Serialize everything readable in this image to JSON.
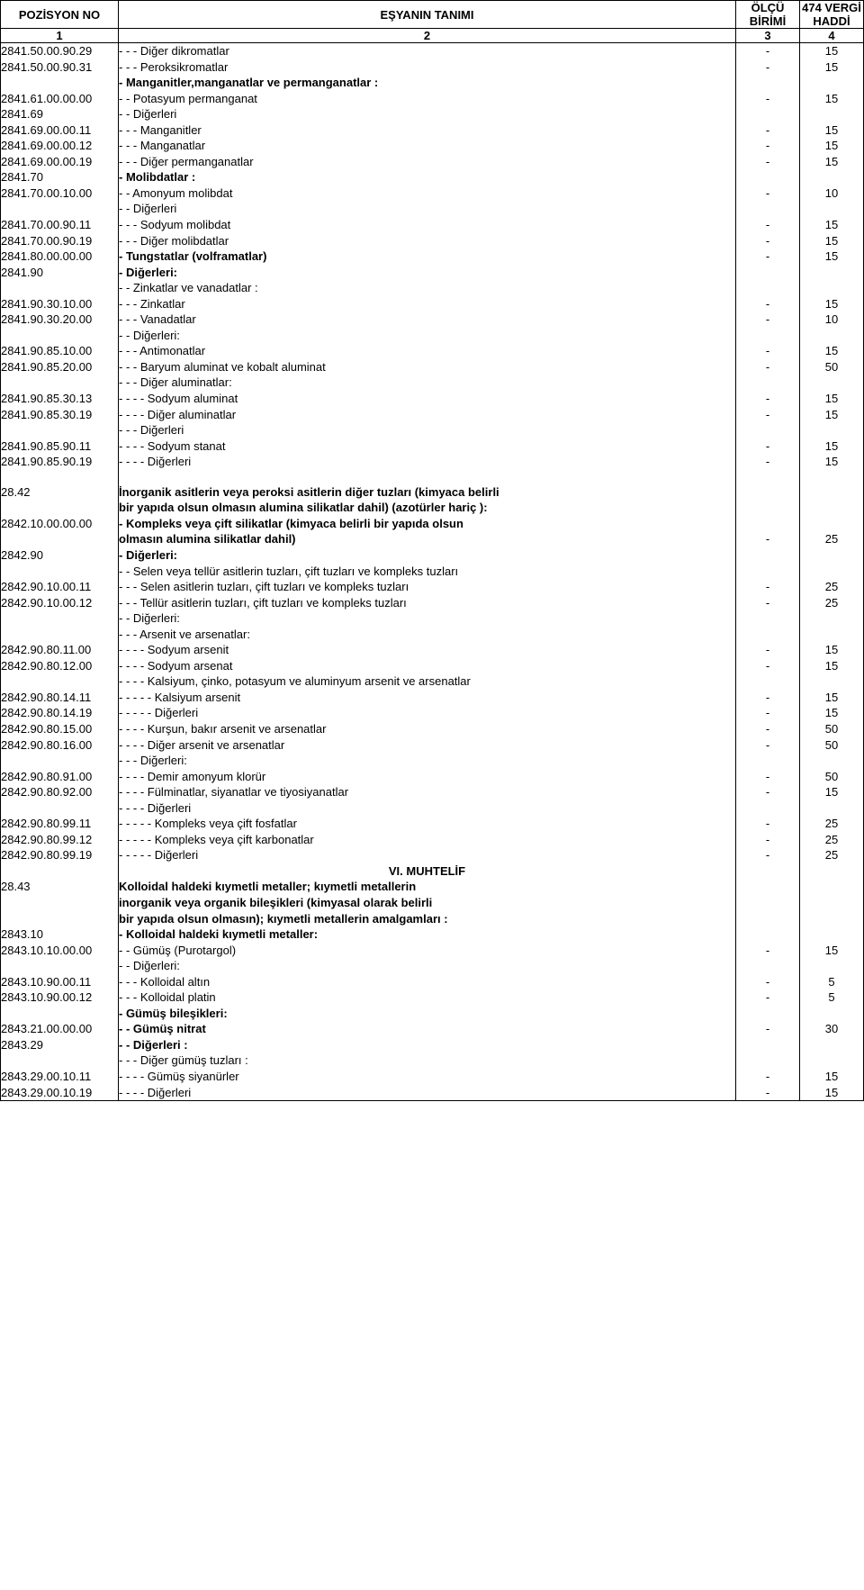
{
  "header": {
    "pozisyon": "POZİSYON NO",
    "esyanin": "EŞYANIN TANIMI",
    "olcu": "ÖLÇÜ BİRİMİ",
    "vergi": "474 VERGİ HADDİ",
    "col1": "1",
    "col2": "2",
    "col3": "3",
    "col4": "4"
  },
  "rows": [
    {
      "poz": "2841.50.00.90.29",
      "desc": "- - - Diğer dikromatlar",
      "olcu": "-",
      "vergi": "15"
    },
    {
      "poz": "2841.50.00.90.31",
      "desc": "- - - Peroksikromatlar",
      "olcu": "-",
      "vergi": "15"
    },
    {
      "poz": "",
      "desc": "- Manganitler,manganatlar ve permanganatlar :",
      "bold": true,
      "olcu": "",
      "vergi": ""
    },
    {
      "poz": "2841.61.00.00.00",
      "desc": "- - Potasyum permanganat",
      "olcu": "-",
      "vergi": "15"
    },
    {
      "poz": "2841.69",
      "desc": "- - Diğerleri",
      "olcu": "",
      "vergi": ""
    },
    {
      "poz": "2841.69.00.00.11",
      "desc": "- - - Manganitler",
      "olcu": "-",
      "vergi": "15"
    },
    {
      "poz": "2841.69.00.00.12",
      "desc": "- - - Manganatlar",
      "olcu": "-",
      "vergi": "15"
    },
    {
      "poz": "2841.69.00.00.19",
      "desc": "- - - Diğer permanganatlar",
      "olcu": "-",
      "vergi": "15"
    },
    {
      "poz": "2841.70",
      "desc": "- Molibdatlar :",
      "bold": true,
      "olcu": "",
      "vergi": ""
    },
    {
      "poz": "2841.70.00.10.00",
      "desc": "- - Amonyum molibdat",
      "olcu": "-",
      "vergi": "10"
    },
    {
      "poz": "",
      "desc": "- - Diğerleri",
      "olcu": "",
      "vergi": ""
    },
    {
      "poz": "2841.70.00.90.11",
      "desc": "- - - Sodyum molibdat",
      "olcu": "-",
      "vergi": "15"
    },
    {
      "poz": "2841.70.00.90.19",
      "desc": "- - - Diğer molibdatlar",
      "olcu": "-",
      "vergi": "15"
    },
    {
      "poz": "2841.80.00.00.00",
      "desc": "- Tungstatlar (volframatlar)",
      "bold": true,
      "olcu": "-",
      "vergi": "15"
    },
    {
      "poz": "2841.90",
      "desc": "- Diğerleri:",
      "bold": true,
      "olcu": "",
      "vergi": ""
    },
    {
      "poz": "",
      "desc": "- - Zinkatlar ve vanadatlar :",
      "olcu": "",
      "vergi": ""
    },
    {
      "poz": "2841.90.30.10.00",
      "desc": "- - - Zinkatlar",
      "olcu": "-",
      "vergi": "15"
    },
    {
      "poz": "2841.90.30.20.00",
      "desc": "- - - Vanadatlar",
      "olcu": "-",
      "vergi": "10"
    },
    {
      "poz": "",
      "desc": "- - Diğerleri:",
      "olcu": "",
      "vergi": ""
    },
    {
      "poz": "2841.90.85.10.00",
      "desc": "- - - Antimonatlar",
      "olcu": "-",
      "vergi": "15"
    },
    {
      "poz": "2841.90.85.20.00",
      "desc": "- - - Baryum aluminat ve kobalt aluminat",
      "olcu": "-",
      "vergi": "50"
    },
    {
      "poz": "",
      "desc": "- - - Diğer aluminatlar:",
      "olcu": "",
      "vergi": ""
    },
    {
      "poz": "2841.90.85.30.13",
      "desc": "- - - - Sodyum aluminat",
      "olcu": "-",
      "vergi": "15"
    },
    {
      "poz": "2841.90.85.30.19",
      "desc": "- - - - Diğer aluminatlar",
      "olcu": "-",
      "vergi": "15"
    },
    {
      "poz": "",
      "desc": "- - - Diğerleri",
      "olcu": "",
      "vergi": ""
    },
    {
      "poz": "2841.90.85.90.11",
      "desc": "- - - - Sodyum stanat",
      "olcu": "-",
      "vergi": "15"
    },
    {
      "poz": "2841.90.85.90.19",
      "desc": "- - - -  Diğerleri",
      "olcu": "-",
      "vergi": "15"
    },
    {
      "spacer": true
    },
    {
      "poz": "28.42",
      "desc": "İnorganik asitlerin veya peroksi asitlerin diğer tuzları (kimyaca belirli",
      "bold": true,
      "olcu": "",
      "vergi": ""
    },
    {
      "poz": "",
      "desc": "bir yapıda olsun olmasın alumina silikatlar dahil) (azotürler hariç ):",
      "bold": true,
      "olcu": "",
      "vergi": ""
    },
    {
      "poz": "2842.10.00.00.00",
      "desc": "- Kompleks veya çift silikatlar (kimyaca belirli bir yapıda olsun",
      "bold": true,
      "olcu": "",
      "vergi": ""
    },
    {
      "poz": "",
      "desc": " olmasın alumina silikatlar dahil)",
      "bold": true,
      "olcu": "-",
      "vergi": "25"
    },
    {
      "poz": "2842.90",
      "desc": "- Diğerleri:",
      "bold": true,
      "olcu": "",
      "vergi": ""
    },
    {
      "poz": "",
      "desc": "- - Selen veya tellür asitlerin tuzları, çift tuzları ve kompleks tuzları",
      "olcu": "",
      "vergi": ""
    },
    {
      "poz": "2842.90.10.00.11",
      "desc": "- - - Selen asitlerin tuzları, çift tuzları ve kompleks tuzları",
      "olcu": "-",
      "vergi": "25"
    },
    {
      "poz": "2842.90.10.00.12",
      "desc": "- - - Tellür asitlerin tuzları, çift tuzları ve kompleks tuzları",
      "olcu": "-",
      "vergi": "25"
    },
    {
      "poz": "",
      "desc": "- - Diğerleri:",
      "olcu": "",
      "vergi": ""
    },
    {
      "poz": "",
      "desc": "- - - Arsenit ve arsenatlar:",
      "olcu": "",
      "vergi": ""
    },
    {
      "poz": "2842.90.80.11.00",
      "desc": "- - - - Sodyum arsenit",
      "olcu": "-",
      "vergi": "15"
    },
    {
      "poz": "2842.90.80.12.00",
      "desc": "- - - - Sodyum arsenat",
      "olcu": "-",
      "vergi": "15"
    },
    {
      "poz": "",
      "desc": "- - - - Kalsiyum, çinko, potasyum ve aluminyum arsenit ve arsenatlar",
      "olcu": "",
      "vergi": ""
    },
    {
      "poz": "2842.90.80.14.11",
      "desc": "- - - - - Kalsiyum arsenit",
      "olcu": "-",
      "vergi": "15"
    },
    {
      "poz": "2842.90.80.14.19",
      "desc": "- - - - - Diğerleri",
      "olcu": "-",
      "vergi": "15"
    },
    {
      "poz": "2842.90.80.15.00",
      "desc": "- - - - Kurşun, bakır arsenit ve arsenatlar",
      "olcu": "-",
      "vergi": "50"
    },
    {
      "poz": "2842.90.80.16.00",
      "desc": "- - - - Diğer arsenit ve arsenatlar",
      "olcu": "-",
      "vergi": "50"
    },
    {
      "poz": "",
      "desc": "- - - Diğerleri:",
      "olcu": "",
      "vergi": ""
    },
    {
      "poz": "2842.90.80.91.00",
      "desc": "- - - - Demir amonyum klorür",
      "olcu": "-",
      "vergi": "50"
    },
    {
      "poz": "2842.90.80.92.00",
      "desc": "- - - - Fülminatlar, siyanatlar ve tiyosiyanatlar",
      "olcu": "-",
      "vergi": "15"
    },
    {
      "poz": "",
      "desc": "- - - - Diğerleri",
      "olcu": "",
      "vergi": ""
    },
    {
      "poz": "2842.90.80.99.11",
      "desc": "- - - - - Kompleks veya çift fosfatlar",
      "olcu": "-",
      "vergi": "25"
    },
    {
      "poz": "2842.90.80.99.12",
      "desc": "- - - - - Kompleks veya çift karbonatlar",
      "olcu": "-",
      "vergi": "25"
    },
    {
      "poz": "2842.90.80.99.19",
      "desc": "- - - - - Diğerleri",
      "olcu": "-",
      "vergi": "25"
    },
    {
      "section": "VI. MUHTELİF"
    },
    {
      "poz": "28.43",
      "desc": "Kolloidal haldeki kıymetli metaller; kıymetli metallerin",
      "bold": true,
      "olcu": "",
      "vergi": ""
    },
    {
      "poz": "",
      "desc": "inorganik veya organik bileşikleri (kimyasal olarak belirli",
      "bold": true,
      "olcu": "",
      "vergi": ""
    },
    {
      "poz": "",
      "desc": "bir yapıda olsun olmasın); kıymetli metallerin amalgamları :",
      "bold": true,
      "olcu": "",
      "vergi": ""
    },
    {
      "poz": "2843.10",
      "desc": "- Kolloidal haldeki kıymetli metaller:",
      "bold": true,
      "olcu": "",
      "vergi": ""
    },
    {
      "poz": "2843.10.10.00.00",
      "desc": "- - Gümüş (Purotargol)",
      "olcu": "-",
      "vergi": "15"
    },
    {
      "poz": "",
      "desc": "- - Diğerleri:",
      "olcu": "",
      "vergi": ""
    },
    {
      "poz": "2843.10.90.00.11",
      "desc": "- - - Kolloidal altın",
      "olcu": "-",
      "vergi": "5"
    },
    {
      "poz": "2843.10.90.00.12",
      "desc": "- - - Kolloidal platin",
      "olcu": "-",
      "vergi": "5"
    },
    {
      "poz": "",
      "desc": "- Gümüş bileşikleri:",
      "bold": true,
      "olcu": "",
      "vergi": ""
    },
    {
      "poz": "2843.21.00.00.00",
      "desc": "- - Gümüş nitrat",
      "bold": true,
      "olcu": "-",
      "vergi": "30"
    },
    {
      "poz": "2843.29",
      "desc": "- - Diğerleri :",
      "bold": true,
      "olcu": "",
      "vergi": ""
    },
    {
      "poz": "",
      "desc": "- - - Diğer gümüş tuzları :",
      "olcu": "",
      "vergi": ""
    },
    {
      "poz": "2843.29.00.10.11",
      "desc": "- - - - Gümüş siyanürler",
      "olcu": "-",
      "vergi": "15"
    },
    {
      "poz": "2843.29.00.10.19",
      "desc": "- - - - Diğerleri",
      "olcu": "-",
      "vergi": "15"
    }
  ]
}
